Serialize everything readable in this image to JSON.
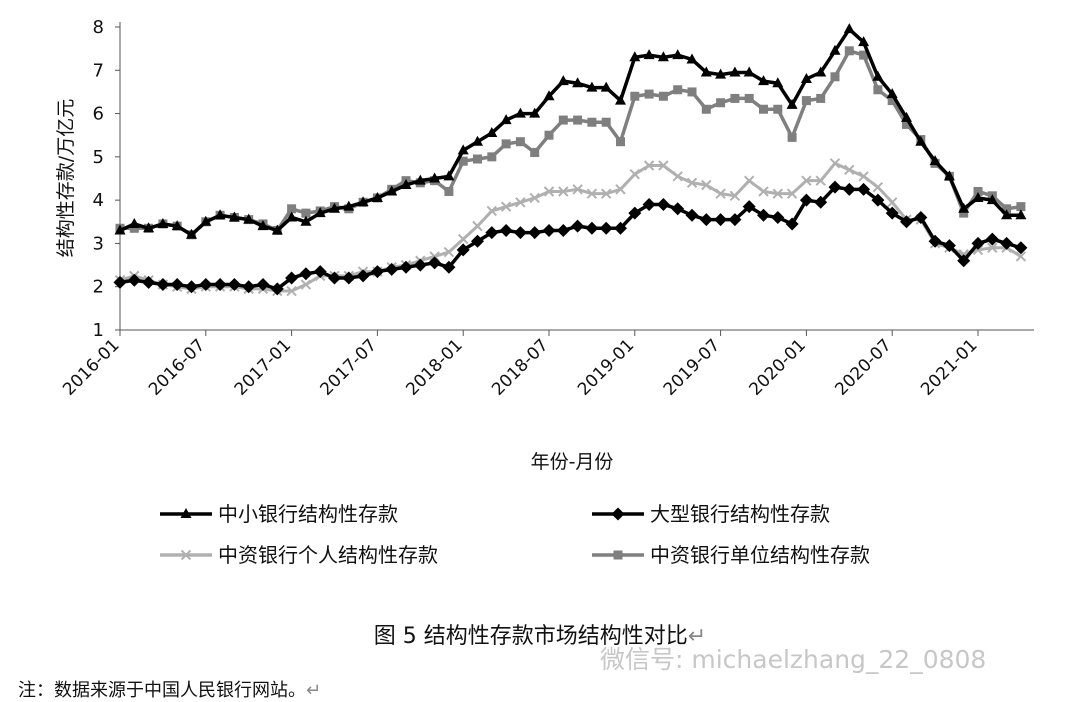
{
  "chart_data": {
    "type": "line",
    "ylabel": "结构性存款/万亿元",
    "xlabel": "年份-月份",
    "ylim": [
      1,
      8
    ],
    "yticks": [
      1,
      2,
      3,
      4,
      5,
      6,
      7,
      8
    ],
    "x_tick_labels": [
      "2016-01",
      "2016-07",
      "2017-01",
      "2017-07",
      "2018-01",
      "2018-07",
      "2019-01",
      "2019-07",
      "2020-01",
      "2020-07",
      "2021-01"
    ],
    "x_start": "2016-01",
    "x": [
      "2016-01",
      "2016-02",
      "2016-03",
      "2016-04",
      "2016-05",
      "2016-06",
      "2016-07",
      "2016-08",
      "2016-09",
      "2016-10",
      "2016-11",
      "2016-12",
      "2017-01",
      "2017-02",
      "2017-03",
      "2017-04",
      "2017-05",
      "2017-06",
      "2017-07",
      "2017-08",
      "2017-09",
      "2017-10",
      "2017-11",
      "2017-12",
      "2018-01",
      "2018-02",
      "2018-03",
      "2018-04",
      "2018-05",
      "2018-06",
      "2018-07",
      "2018-08",
      "2018-09",
      "2018-10",
      "2018-11",
      "2018-12",
      "2019-01",
      "2019-02",
      "2019-03",
      "2019-04",
      "2019-05",
      "2019-06",
      "2019-07",
      "2019-08",
      "2019-09",
      "2019-10",
      "2019-11",
      "2019-12",
      "2020-01",
      "2020-02",
      "2020-03",
      "2020-04",
      "2020-05",
      "2020-06",
      "2020-07",
      "2020-08",
      "2020-09",
      "2020-10",
      "2020-11",
      "2020-12",
      "2021-01",
      "2021-02",
      "2021-03",
      "2021-04"
    ],
    "grid": false,
    "legend": "bottom",
    "series": [
      {
        "name": "中小银行结构性存款",
        "color": "#000000",
        "marker": "triangle",
        "values": [
          3.3,
          3.45,
          3.35,
          3.45,
          3.4,
          3.2,
          3.5,
          3.65,
          3.6,
          3.55,
          3.4,
          3.3,
          3.6,
          3.5,
          3.7,
          3.8,
          3.85,
          3.95,
          4.05,
          4.2,
          4.35,
          4.45,
          4.5,
          4.55,
          5.15,
          5.35,
          5.55,
          5.85,
          6.0,
          6.0,
          6.4,
          6.75,
          6.7,
          6.6,
          6.6,
          6.3,
          7.3,
          7.35,
          7.3,
          7.35,
          7.25,
          6.95,
          6.9,
          6.95,
          6.95,
          6.75,
          6.7,
          6.2,
          6.8,
          6.95,
          7.45,
          7.95,
          7.65,
          6.85,
          6.45,
          5.9,
          5.35,
          4.9,
          4.55,
          3.8,
          4.05,
          4.0,
          3.65,
          3.65
        ]
      },
      {
        "name": "大型银行结构性存款",
        "color": "#000000",
        "marker": "diamond",
        "values": [
          2.1,
          2.15,
          2.1,
          2.05,
          2.05,
          2.0,
          2.05,
          2.05,
          2.05,
          2.0,
          2.05,
          1.95,
          2.2,
          2.3,
          2.35,
          2.2,
          2.2,
          2.25,
          2.35,
          2.4,
          2.45,
          2.5,
          2.55,
          2.45,
          2.85,
          3.05,
          3.25,
          3.3,
          3.25,
          3.25,
          3.3,
          3.3,
          3.4,
          3.35,
          3.35,
          3.35,
          3.7,
          3.9,
          3.9,
          3.8,
          3.65,
          3.55,
          3.55,
          3.55,
          3.85,
          3.65,
          3.6,
          3.45,
          4.0,
          3.95,
          4.3,
          4.25,
          4.25,
          4.0,
          3.7,
          3.5,
          3.6,
          3.05,
          2.95,
          2.6,
          3.0,
          3.1,
          3.0,
          2.9
        ]
      },
      {
        "name": "中资银行个人结构性存款",
        "color": "#b0b0b0",
        "marker": "x",
        "values": [
          2.15,
          2.25,
          2.15,
          2.05,
          2.0,
          1.95,
          2.0,
          2.0,
          2.0,
          1.95,
          1.95,
          1.9,
          1.9,
          2.05,
          2.25,
          2.25,
          2.25,
          2.35,
          2.35,
          2.45,
          2.5,
          2.6,
          2.7,
          2.8,
          3.1,
          3.4,
          3.75,
          3.85,
          3.95,
          4.05,
          4.2,
          4.2,
          4.25,
          4.15,
          4.15,
          4.25,
          4.6,
          4.8,
          4.8,
          4.55,
          4.4,
          4.35,
          4.15,
          4.1,
          4.45,
          4.2,
          4.15,
          4.15,
          4.45,
          4.45,
          4.85,
          4.7,
          4.55,
          4.3,
          3.95,
          3.55,
          3.55,
          3.0,
          2.9,
          2.75,
          2.85,
          2.9,
          2.9,
          2.7
        ]
      },
      {
        "name": "中资银行单位结构性存款",
        "color": "#7f7f7f",
        "marker": "square",
        "values": [
          3.35,
          3.35,
          3.35,
          3.45,
          3.4,
          3.2,
          3.5,
          3.65,
          3.6,
          3.55,
          3.45,
          3.3,
          3.8,
          3.7,
          3.75,
          3.85,
          3.8,
          3.95,
          4.05,
          4.25,
          4.45,
          4.4,
          4.45,
          4.2,
          4.9,
          4.95,
          5.0,
          5.3,
          5.35,
          5.1,
          5.5,
          5.85,
          5.85,
          5.8,
          5.8,
          5.35,
          6.4,
          6.45,
          6.4,
          6.55,
          6.5,
          6.1,
          6.25,
          6.35,
          6.35,
          6.1,
          6.1,
          5.45,
          6.3,
          6.35,
          6.85,
          7.45,
          7.35,
          6.55,
          6.3,
          5.75,
          5.4,
          4.85,
          4.55,
          3.7,
          4.2,
          4.1,
          3.8,
          3.85
        ]
      }
    ]
  },
  "caption": {
    "text": "图 5  结构性存款市场结构性对比",
    "return_mark": "↵"
  },
  "note": {
    "text": "注：数据来源于中国人民银行网站。",
    "return_mark": "↵"
  },
  "watermark": "微信号: michaelzhang_22_0808"
}
